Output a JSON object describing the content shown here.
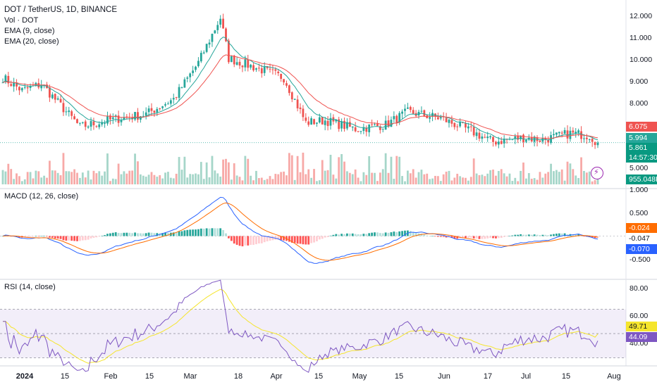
{
  "header": {
    "symbol": "DOT / TetherUS, 1D, BINANCE",
    "studies": [
      "Vol · DOT",
      "EMA (9, close)",
      "EMA (20, close)"
    ]
  },
  "price_axis": [
    "12.000",
    "11.000",
    "10.000",
    "9.000",
    "8.000",
    "5.000"
  ],
  "price_tags": {
    "ema20": "6.075",
    "ema9": "5.994",
    "last_price": "5.861",
    "countdown": "14:57:30",
    "volume": "955.048K"
  },
  "macd": {
    "label": "MACD (12, 26, close)",
    "axis": [
      "1.000",
      "0.500",
      "-0.500"
    ],
    "tags": [
      "-0.024",
      "-0.047",
      "-0.070"
    ]
  },
  "rsi": {
    "label": "RSI (14, close)",
    "axis": [
      "80.00",
      "60.00",
      "40.00"
    ],
    "tags": [
      "49.71",
      "44.09"
    ]
  },
  "time_axis": [
    "2024",
    "15",
    "Feb",
    "15",
    "Mar",
    "18",
    "Apr",
    "15",
    "May",
    "15",
    "Jun",
    "17",
    "Jul",
    "15",
    "Aug"
  ],
  "colors": {
    "up": "#26a69a",
    "down": "#ef5350",
    "ema9": "#26a69a",
    "ema20": "#ef5350",
    "macd": "#2962ff",
    "signal": "#ff6d00",
    "rsi": "#7e57c2",
    "rsi_ma": "#f5e52d"
  },
  "chart_data": {
    "type": "candlestick",
    "symbol": "DOT / TetherUS",
    "interval": "1D",
    "ylim": [
      4.9,
      12.2
    ],
    "last_close": 5.861,
    "ema9_last": 5.994,
    "ema20_last": 6.075,
    "volume_last": "955.048K",
    "approx_close_anchors": [
      [
        "2024-01-01",
        8.3
      ],
      [
        "2024-01-08",
        8.6
      ],
      [
        "2024-01-15",
        7.6
      ],
      [
        "2024-01-22",
        6.6
      ],
      [
        "2024-02-01",
        6.9
      ],
      [
        "2024-02-15",
        7.2
      ],
      [
        "2024-02-25",
        7.9
      ],
      [
        "2024-03-05",
        9.6
      ],
      [
        "2024-03-13",
        11.7
      ],
      [
        "2024-03-16",
        9.8
      ],
      [
        "2024-03-25",
        9.4
      ],
      [
        "2024-04-05",
        8.9
      ],
      [
        "2024-04-13",
        6.8
      ],
      [
        "2024-04-20",
        6.9
      ],
      [
        "2024-05-01",
        6.5
      ],
      [
        "2024-05-12",
        6.7
      ],
      [
        "2024-05-20",
        7.3
      ],
      [
        "2024-06-01",
        7.0
      ],
      [
        "2024-06-12",
        6.4
      ],
      [
        "2024-06-20",
        5.9
      ],
      [
        "2024-07-01",
        6.1
      ],
      [
        "2024-07-08",
        6.0
      ],
      [
        "2024-07-18",
        6.3
      ],
      [
        "2024-07-25",
        6.2
      ],
      [
        "2024-07-28",
        5.861
      ]
    ],
    "macd_ylim": [
      -0.75,
      1.05
    ],
    "macd_last": {
      "macd": -0.07,
      "signal": -0.024,
      "histogram": -0.047
    },
    "rsi_ylim": [
      28,
      86
    ],
    "rsi_last": {
      "rsi": 44.09,
      "rsi_ma": 49.71
    }
  }
}
